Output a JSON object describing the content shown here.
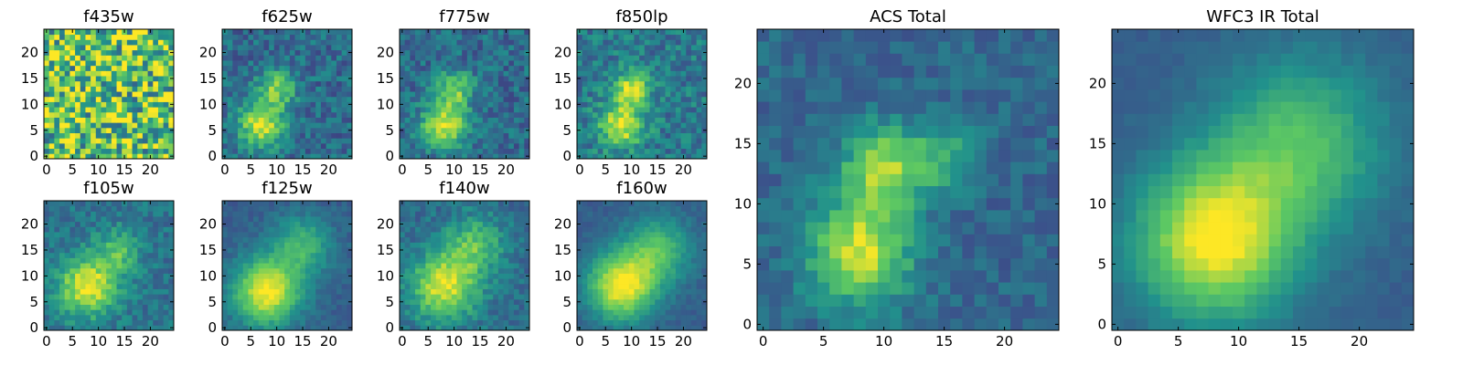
{
  "figure": {
    "background": "#ffffff",
    "colormap": "viridis",
    "colormap_stops": [
      "#440154",
      "#3b528b",
      "#21918c",
      "#5ec962",
      "#fde725"
    ]
  },
  "chart_data": [
    {
      "type": "heatmap",
      "title": "f435w",
      "grid_size": 25,
      "xlim": [
        0,
        24
      ],
      "ylim": [
        0,
        24
      ],
      "xticks": [
        0,
        5,
        10,
        15,
        20
      ],
      "yticks": [
        0,
        5,
        10,
        15,
        20
      ],
      "pattern": {
        "noise": 0.8,
        "mean": 0.72,
        "sources": []
      }
    },
    {
      "type": "heatmap",
      "title": "f625w",
      "grid_size": 25,
      "xlim": [
        0,
        24
      ],
      "ylim": [
        0,
        24
      ],
      "xticks": [
        0,
        5,
        10,
        15,
        20
      ],
      "yticks": [
        0,
        5,
        10,
        15,
        20
      ],
      "pattern": {
        "noise": 0.28,
        "mean": 0.35,
        "sources": [
          {
            "x": 7,
            "y": 6,
            "amp": 0.6,
            "sigma": 3
          },
          {
            "x": 10,
            "y": 13,
            "amp": 0.45,
            "sigma": 2.5
          }
        ]
      }
    },
    {
      "type": "heatmap",
      "title": "f775w",
      "grid_size": 25,
      "xlim": [
        0,
        24
      ],
      "ylim": [
        0,
        24
      ],
      "xticks": [
        0,
        5,
        10,
        15,
        20
      ],
      "yticks": [
        0,
        5,
        10,
        15,
        20
      ],
      "pattern": {
        "noise": 0.28,
        "mean": 0.35,
        "sources": [
          {
            "x": 8,
            "y": 6,
            "amp": 0.6,
            "sigma": 3
          },
          {
            "x": 10,
            "y": 13,
            "amp": 0.45,
            "sigma": 2.5
          }
        ]
      }
    },
    {
      "type": "heatmap",
      "title": "f850lp",
      "grid_size": 25,
      "xlim": [
        0,
        24
      ],
      "ylim": [
        0,
        24
      ],
      "xticks": [
        0,
        5,
        10,
        15,
        20
      ],
      "yticks": [
        0,
        5,
        10,
        15,
        20
      ],
      "pattern": {
        "noise": 0.3,
        "mean": 0.4,
        "sources": [
          {
            "x": 8,
            "y": 6,
            "amp": 0.55,
            "sigma": 3
          },
          {
            "x": 10,
            "y": 13,
            "amp": 0.5,
            "sigma": 2.5
          }
        ]
      }
    },
    {
      "type": "heatmap",
      "title": "f105w",
      "grid_size": 25,
      "xlim": [
        0,
        24
      ],
      "ylim": [
        0,
        24
      ],
      "xticks": [
        0,
        5,
        10,
        15,
        20
      ],
      "yticks": [
        0,
        5,
        10,
        15,
        20
      ],
      "pattern": {
        "noise": 0.22,
        "mean": 0.38,
        "sources": [
          {
            "x": 8,
            "y": 8,
            "amp": 0.6,
            "sigma": 4
          },
          {
            "x": 14,
            "y": 15,
            "amp": 0.3,
            "sigma": 3
          }
        ]
      }
    },
    {
      "type": "heatmap",
      "title": "f125w",
      "grid_size": 25,
      "xlim": [
        0,
        24
      ],
      "ylim": [
        0,
        24
      ],
      "xticks": [
        0,
        5,
        10,
        15,
        20
      ],
      "yticks": [
        0,
        5,
        10,
        15,
        20
      ],
      "pattern": {
        "noise": 0.12,
        "mean": 0.3,
        "sources": [
          {
            "x": 8,
            "y": 7,
            "amp": 0.7,
            "sigma": 4.5
          },
          {
            "x": 15,
            "y": 16,
            "amp": 0.35,
            "sigma": 4
          }
        ]
      }
    },
    {
      "type": "heatmap",
      "title": "f140w",
      "grid_size": 25,
      "xlim": [
        0,
        24
      ],
      "ylim": [
        0,
        24
      ],
      "xticks": [
        0,
        5,
        10,
        15,
        20
      ],
      "yticks": [
        0,
        5,
        10,
        15,
        20
      ],
      "pattern": {
        "noise": 0.2,
        "mean": 0.35,
        "sources": [
          {
            "x": 8,
            "y": 8,
            "amp": 0.6,
            "sigma": 4.5
          },
          {
            "x": 14,
            "y": 16,
            "amp": 0.35,
            "sigma": 4
          }
        ]
      }
    },
    {
      "type": "heatmap",
      "title": "f160w",
      "grid_size": 25,
      "xlim": [
        0,
        24
      ],
      "ylim": [
        0,
        24
      ],
      "xticks": [
        0,
        5,
        10,
        15,
        20
      ],
      "yticks": [
        0,
        5,
        10,
        15,
        20
      ],
      "pattern": {
        "noise": 0.1,
        "mean": 0.3,
        "sources": [
          {
            "x": 8,
            "y": 8,
            "amp": 0.7,
            "sigma": 4.5
          },
          {
            "x": 15,
            "y": 15,
            "amp": 0.4,
            "sigma": 4.5
          }
        ]
      }
    },
    {
      "type": "heatmap",
      "title": "ACS Total",
      "grid_size": 25,
      "xlim": [
        0,
        24
      ],
      "ylim": [
        0,
        24
      ],
      "xticks": [
        0,
        5,
        10,
        15,
        20
      ],
      "yticks": [
        0,
        5,
        10,
        15,
        20
      ],
      "pattern": {
        "noise": 0.18,
        "mean": 0.33,
        "sources": [
          {
            "x": 8,
            "y": 6,
            "amp": 0.6,
            "sigma": 3
          },
          {
            "x": 10,
            "y": 13,
            "amp": 0.5,
            "sigma": 2.5
          },
          {
            "x": 15,
            "y": 14,
            "amp": 0.25,
            "sigma": 2
          }
        ]
      }
    },
    {
      "type": "heatmap",
      "title": "WFC3 IR Total",
      "grid_size": 25,
      "xlim": [
        0,
        24
      ],
      "ylim": [
        0,
        24
      ],
      "xticks": [
        0,
        5,
        10,
        15,
        20
      ],
      "yticks": [
        0,
        5,
        10,
        15,
        20
      ],
      "pattern": {
        "noise": 0.06,
        "mean": 0.3,
        "sources": [
          {
            "x": 8,
            "y": 7,
            "amp": 0.7,
            "sigma": 4.5
          },
          {
            "x": 15,
            "y": 15,
            "amp": 0.4,
            "sigma": 5
          }
        ]
      }
    }
  ]
}
